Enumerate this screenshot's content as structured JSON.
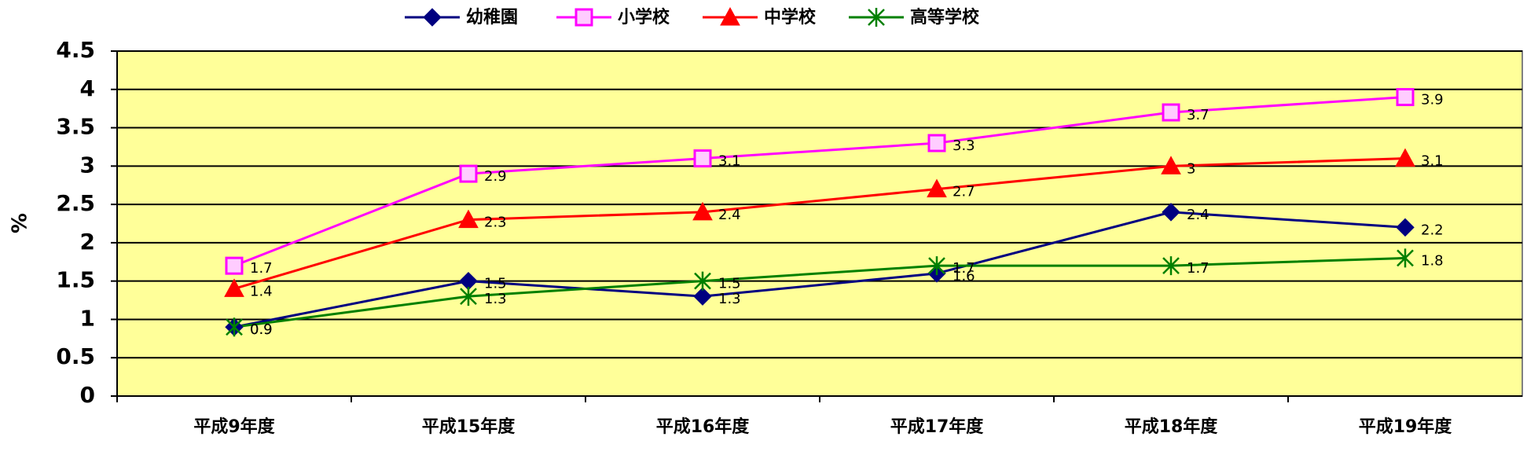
{
  "chart_data": {
    "type": "line",
    "y_label": "%",
    "categories": [
      "平成9年度",
      "平成15年度",
      "平成16年度",
      "平成17年度",
      "平成18年度",
      "平成19年度"
    ],
    "series": [
      {
        "name": "幼稚園",
        "color": "#000080",
        "marker": "diamond",
        "values": [
          0.9,
          1.5,
          1.3,
          1.6,
          2.4,
          2.2
        ]
      },
      {
        "name": "小学校",
        "color": "#ff00ff",
        "marker": "square",
        "values": [
          1.7,
          2.9,
          3.1,
          3.3,
          3.7,
          3.9
        ]
      },
      {
        "name": "中学校",
        "color": "#ff0000",
        "marker": "triangle",
        "values": [
          1.4,
          2.3,
          2.4,
          2.7,
          3,
          3.1
        ]
      },
      {
        "name": "高等学校",
        "color": "#008000",
        "marker": "asterisk",
        "values": [
          0.9,
          1.3,
          1.5,
          1.7,
          1.7,
          1.8
        ]
      }
    ],
    "ylim": [
      0,
      4.5
    ],
    "yticks": [
      0,
      0.5,
      1,
      1.5,
      2,
      2.5,
      3,
      3.5,
      4,
      4.5
    ],
    "grid": true,
    "legend": "top"
  }
}
